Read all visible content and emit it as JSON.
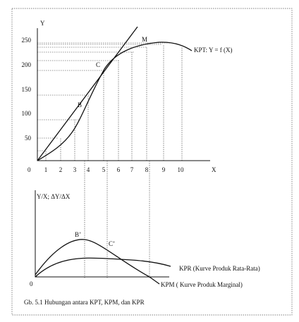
{
  "top_chart": {
    "y_label": "Y",
    "x_label": "X",
    "origin": "0",
    "y_ticks": [
      "250",
      "200",
      "150",
      "100",
      "50"
    ],
    "x_ticks": [
      "1",
      "2",
      "3",
      "4",
      "5",
      "6",
      "7",
      "8",
      "9",
      "10"
    ],
    "points": [
      "B",
      "C",
      "M"
    ],
    "curve_label": "KPT:  Y = f (X)"
  },
  "bottom_chart": {
    "y_label": "Y/X; ΔY/ΔX",
    "origin": "0",
    "points": [
      "B’",
      "C’"
    ],
    "curve_labels": [
      "KPR (Kurve Produk Rata-Rata)",
      "KPM ( Kurve Produk Marginal)"
    ]
  },
  "caption": "Gb. 5.1  Hubungan antara KPT, KPM, dan KPR"
}
